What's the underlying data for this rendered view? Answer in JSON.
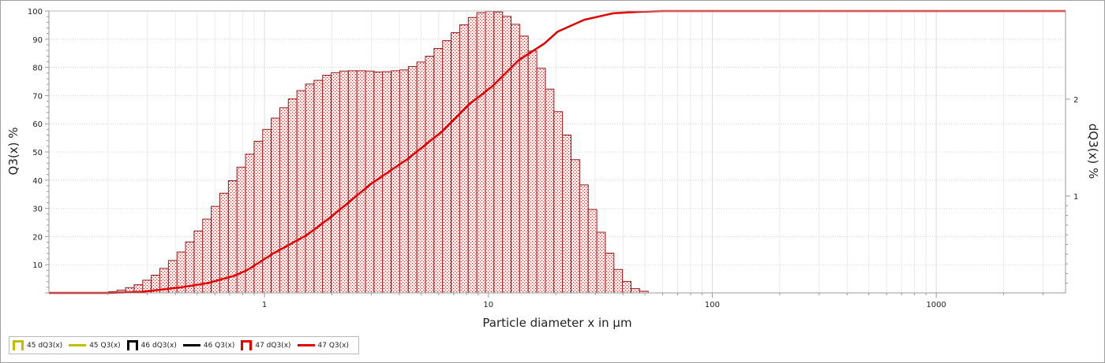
{
  "chart_data": {
    "type": "bar+line",
    "xlabel": "Particle diameter x in µm",
    "ylabel_left": "Q3(x) %",
    "ylabel_right": "dQ3(x) %",
    "x_scale": "log",
    "xlim": [
      0.109,
      3780
    ],
    "x_tick_labels": [
      "1",
      "10",
      "100",
      "1000"
    ],
    "x_ticks": [
      1,
      10,
      100,
      1000
    ],
    "ylim_left": [
      0,
      100
    ],
    "y_left_tick_labels": [
      "10",
      "20",
      "30",
      "40",
      "50",
      "60",
      "70",
      "80",
      "90",
      "100"
    ],
    "ylim_right": [
      0,
      2.91
    ],
    "y_right_tick_labels": [
      "1",
      "2"
    ],
    "grid": true,
    "legend_position": "bottom-left",
    "legend": [
      {
        "label": "45 dQ3(x)",
        "kind": "bar",
        "color": "#bfbf00"
      },
      {
        "label": "45 Q3(x)",
        "kind": "line",
        "color": "#bfbf00"
      },
      {
        "label": "46 dQ3(x)",
        "kind": "bar",
        "color": "#000000"
      },
      {
        "label": "46 Q3(x)",
        "kind": "line",
        "color": "#000000"
      },
      {
        "label": "47 dQ3(x)",
        "kind": "bar",
        "color": "#e00000"
      },
      {
        "label": "47 Q3(x)",
        "kind": "line",
        "color": "#e00000"
      }
    ],
    "series": [
      {
        "name": "47 dQ3(x)",
        "type": "bar",
        "axis": "right",
        "color": "#8b1a1a",
        "bin_edges": [
          0.201,
          0.2195,
          0.2397,
          0.2618,
          0.2859,
          0.3122,
          0.341,
          0.3724,
          0.4067,
          0.4441,
          0.485,
          0.5297,
          0.5785,
          0.6318,
          0.69,
          0.7535,
          0.8229,
          0.8987,
          0.9815,
          1.072,
          1.171,
          1.278,
          1.396,
          1.525,
          1.665,
          1.818,
          1.986,
          2.169,
          2.369,
          2.587,
          2.825,
          3.085,
          3.369,
          3.68,
          4.019,
          4.389,
          4.793,
          5.234,
          5.716,
          6.243,
          6.818,
          7.446,
          8.131,
          8.88,
          9.698,
          10.59,
          11.57,
          12.63,
          13.79,
          15.06,
          16.45,
          17.97,
          19.62,
          21.43,
          23.4,
          25.56,
          27.91,
          30.48,
          33.29,
          36.36,
          39.7,
          43.36,
          47.35,
          51.71
        ],
        "values": [
          0.012,
          0.029,
          0.055,
          0.084,
          0.131,
          0.183,
          0.253,
          0.335,
          0.422,
          0.527,
          0.64,
          0.762,
          0.893,
          1.03,
          1.158,
          1.298,
          1.432,
          1.566,
          1.688,
          1.804,
          1.912,
          2.002,
          2.089,
          2.156,
          2.194,
          2.247,
          2.273,
          2.29,
          2.293,
          2.293,
          2.29,
          2.281,
          2.284,
          2.293,
          2.302,
          2.337,
          2.383,
          2.444,
          2.523,
          2.604,
          2.686,
          2.767,
          2.843,
          2.893,
          2.907,
          2.901,
          2.855,
          2.773,
          2.651,
          2.497,
          2.319,
          2.104,
          1.871,
          1.63,
          1.376,
          1.115,
          0.861,
          0.626,
          0.41,
          0.242,
          0.119,
          0.044,
          0.017
        ]
      },
      {
        "name": "47 Q3(x)",
        "type": "line",
        "axis": "left",
        "color": "#e00000",
        "x": [
          0.109,
          0.2,
          0.284,
          0.426,
          0.559,
          0.733,
          0.837,
          1.1,
          1.55,
          1.99,
          2.99,
          4.37,
          6.21,
          8.14,
          10.38,
          13.6,
          17.8,
          20.4,
          26.8,
          36.1,
          46.0,
          60,
          3780
        ],
        "y": [
          0,
          0,
          0.4,
          2.0,
          3.5,
          6.1,
          8.1,
          14.1,
          20.6,
          27.1,
          38.7,
          47.6,
          57.3,
          66.7,
          73.2,
          82.5,
          88.5,
          92.7,
          96.9,
          99.2,
          99.7,
          100,
          100
        ]
      }
    ]
  }
}
